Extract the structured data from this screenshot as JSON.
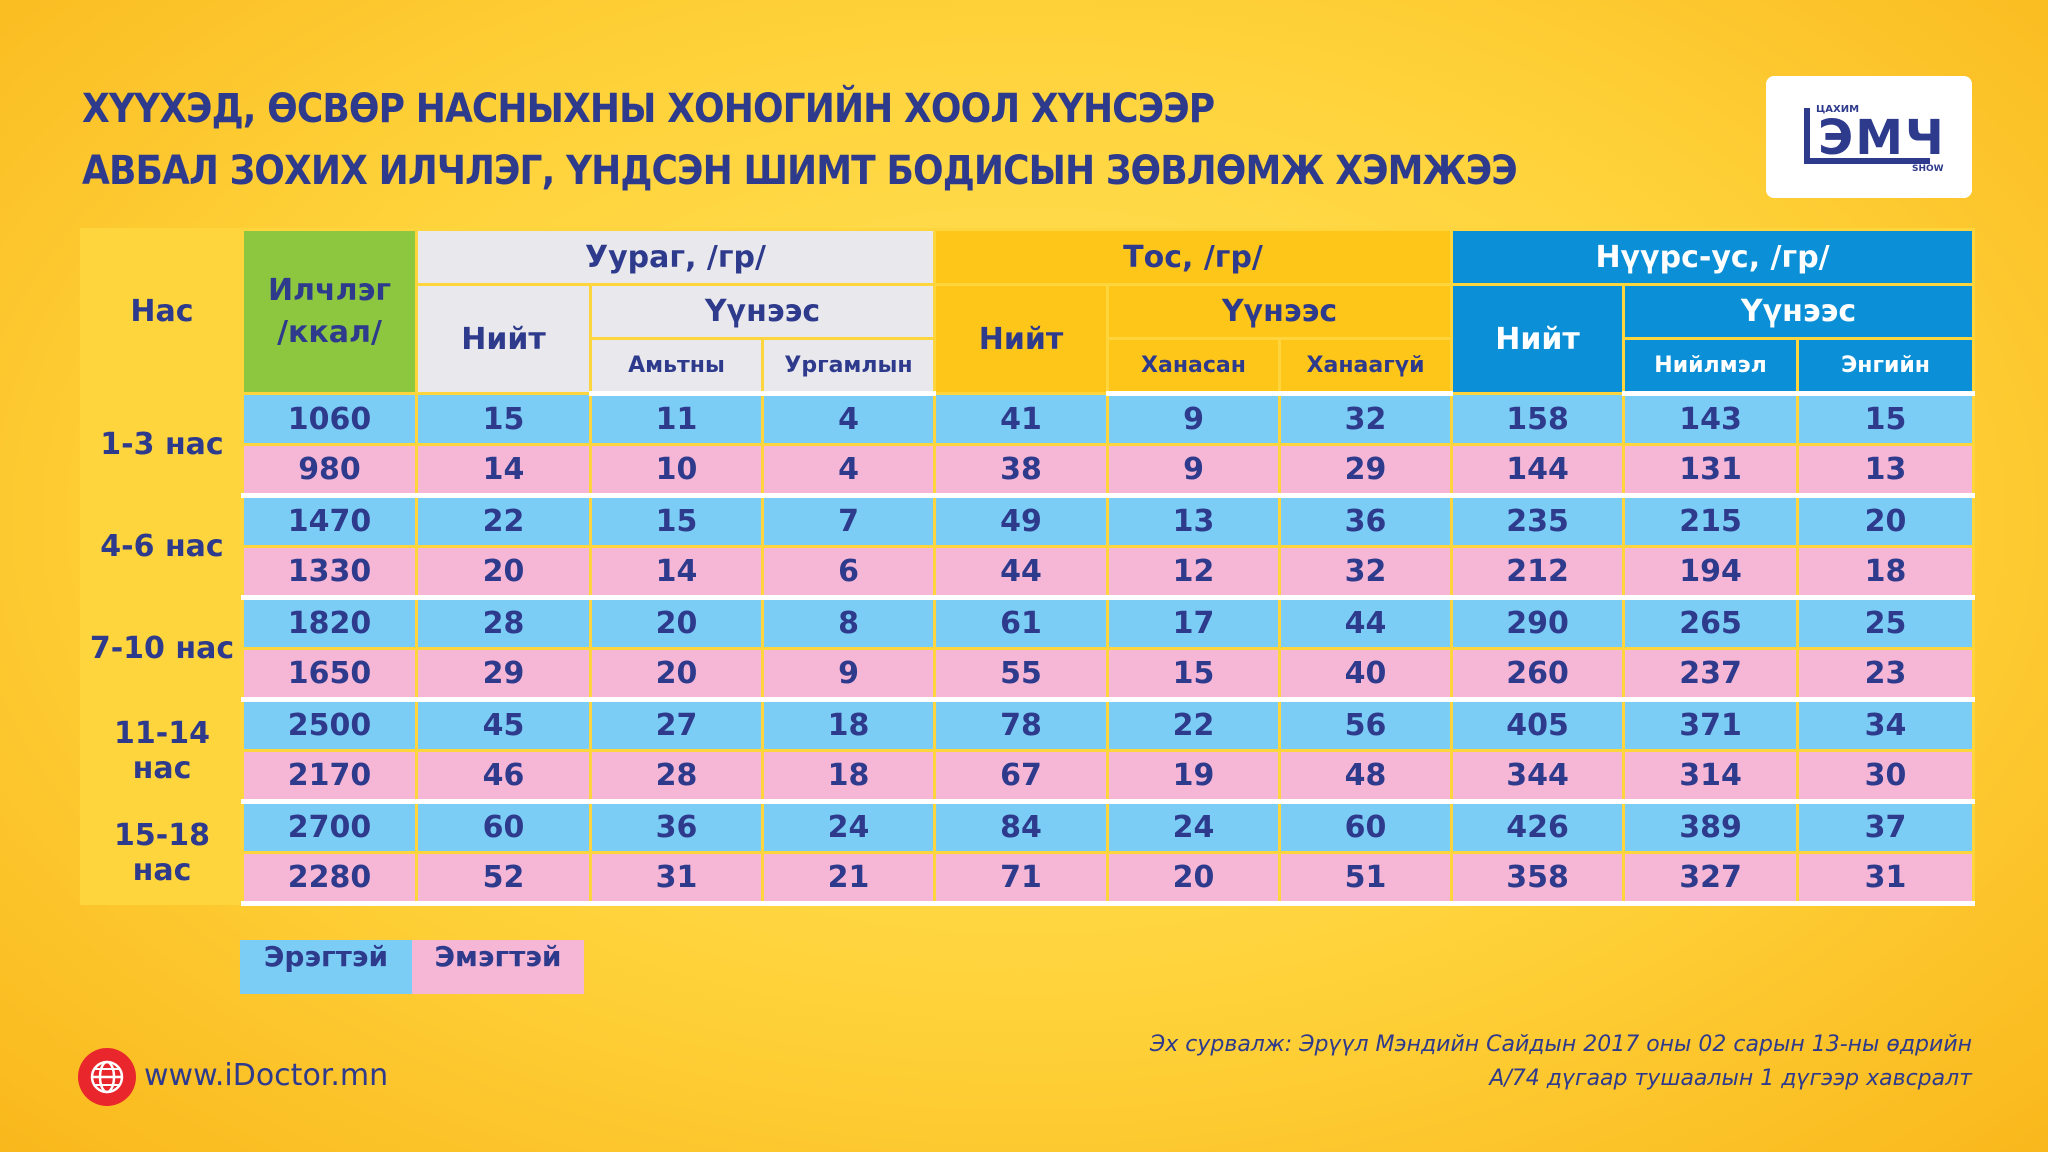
{
  "title_line1": "ХҮҮХЭД, ӨСВӨР НАСНЫХНЫ ХОНОГИЙН ХООЛ ХҮНСЭЭР",
  "title_line2": "АВБАЛ ЗОХИХ ИЛЧЛЭГ, ҮНДСЭН ШИМТ БОДИСЫН ЗӨВЛӨМЖ ХЭМЖЭЭ",
  "logo": {
    "top": "ЦАХИМ",
    "main": "ЭМЧ",
    "bottom": "SHOW"
  },
  "headers": {
    "age": "Нас",
    "energy_line1": "Илчлэг",
    "energy_line2": "/ккал/",
    "protein": "Уураг, /гр/",
    "fat": "Тос, /гр/",
    "carb": "Нүүрс-ус, /гр/",
    "total": "Нийт",
    "of_which": "Үүнээс",
    "animal": "Амьтны",
    "plant": "Ургамлын",
    "saturated": "Ханасан",
    "unsaturated": "Ханаагүй",
    "complex": "Нийлмэл",
    "simple": "Энгийн"
  },
  "chart_data": {
    "type": "table",
    "columns": [
      "Нас",
      "Илчлэг /ккал/",
      "Уураг Нийт",
      "Уураг Амьтны",
      "Уураг Ургамлын",
      "Тос Нийт",
      "Тос Ханасан",
      "Тос Ханаагүй",
      "Нүүрс-ус Нийт",
      "Нүүрс-ус Нийлмэл",
      "Нүүрс-ус Энгийн"
    ],
    "groups": [
      {
        "age": "1-3 нас",
        "male": [
          1060,
          15,
          11,
          4,
          41,
          9,
          32,
          158,
          143,
          15
        ],
        "female": [
          980,
          14,
          10,
          4,
          38,
          9,
          29,
          144,
          131,
          13
        ]
      },
      {
        "age": "4-6 нас",
        "male": [
          1470,
          22,
          15,
          7,
          49,
          13,
          36,
          235,
          215,
          20
        ],
        "female": [
          1330,
          20,
          14,
          6,
          44,
          12,
          32,
          212,
          194,
          18
        ]
      },
      {
        "age": "7-10 нас",
        "male": [
          1820,
          28,
          20,
          8,
          61,
          17,
          44,
          290,
          265,
          25
        ],
        "female": [
          1650,
          29,
          20,
          9,
          55,
          15,
          40,
          260,
          237,
          23
        ]
      },
      {
        "age": "11-14 нас",
        "male": [
          2500,
          45,
          27,
          18,
          78,
          22,
          56,
          405,
          371,
          34
        ],
        "female": [
          2170,
          46,
          28,
          18,
          67,
          19,
          48,
          344,
          314,
          30
        ]
      },
      {
        "age": "15-18 нас",
        "male": [
          2700,
          60,
          36,
          24,
          84,
          24,
          60,
          426,
          389,
          37
        ],
        "female": [
          2280,
          52,
          31,
          21,
          71,
          20,
          51,
          358,
          327,
          31
        ]
      }
    ],
    "row_colors": {
      "male": "#7bcdf5",
      "female": "#f6b7d6"
    }
  },
  "legend": {
    "male": "Эрэгтэй",
    "female": "Эмэгтэй"
  },
  "website": "www.iDoctor.mn",
  "source_line1": "Эх сурвалж: Эрүүл Мэндийн Сайдын 2017 оны 02 сарын 13-ны өдрийн",
  "source_line2": "А/74 дүгаар тушаалын 1 дүгээр хавсралт",
  "icons": {
    "website": "globe-icon"
  },
  "colors": {
    "background": "#ffd23a",
    "text": "#2e3a8c",
    "energy_header": "#8dc63f",
    "protein_header": "#e9e9ed",
    "fat_header": "#ffc61a",
    "carb_header": "#0b8fd6",
    "globe": "#e8262c"
  }
}
